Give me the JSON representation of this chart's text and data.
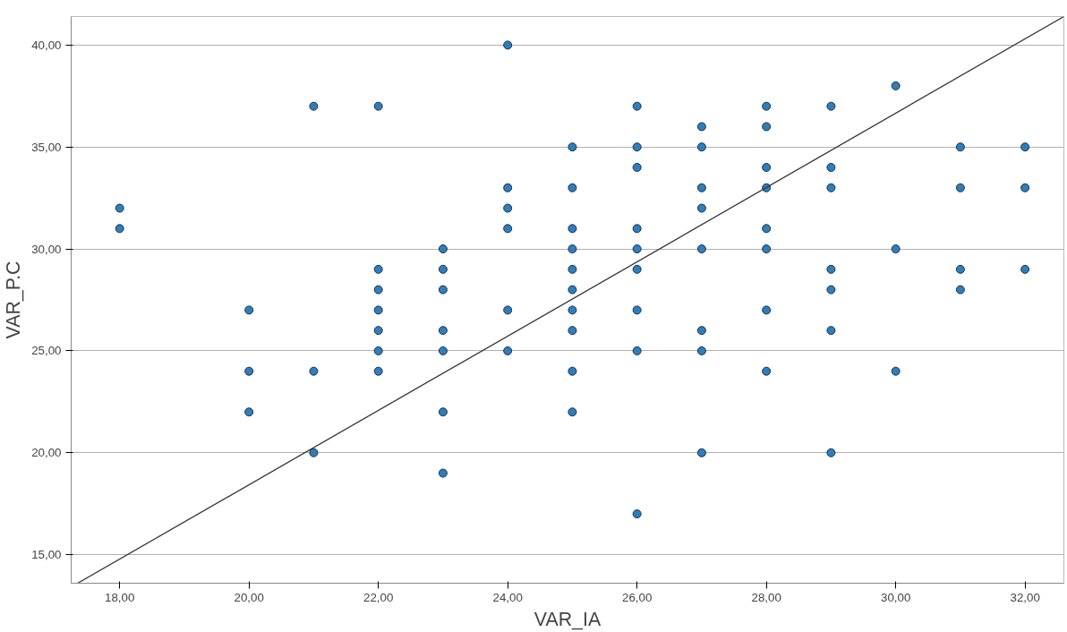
{
  "chart_data": {
    "type": "scatter",
    "xlabel": "VAR_IA",
    "ylabel": "VAR_P.C",
    "grid": "y",
    "marker": "circle",
    "xlim": [
      17.25,
      32.6
    ],
    "ylim": [
      13.6,
      41.4
    ],
    "xticks": [
      {
        "value": 18,
        "label": "18,00"
      },
      {
        "value": 20,
        "label": "20,00"
      },
      {
        "value": 22,
        "label": "22,00"
      },
      {
        "value": 24,
        "label": "24,00"
      },
      {
        "value": 26,
        "label": "26,00"
      },
      {
        "value": 28,
        "label": "28,00"
      },
      {
        "value": 30,
        "label": "30,00"
      },
      {
        "value": 32,
        "label": "32,00"
      }
    ],
    "yticks": [
      {
        "value": 15,
        "label": "15,00"
      },
      {
        "value": 20,
        "label": "20,00"
      },
      {
        "value": 25,
        "label": "25,00"
      },
      {
        "value": 30,
        "label": "30,00"
      },
      {
        "value": 35,
        "label": "35,00"
      },
      {
        "value": 40,
        "label": "40,00"
      }
    ],
    "series": [
      {
        "color": "#2f7ebc",
        "x": [
          18,
          18,
          20,
          20,
          20,
          21,
          21,
          21,
          22,
          22,
          22,
          22,
          22,
          22,
          22,
          23,
          23,
          23,
          23,
          23,
          23,
          23,
          24,
          24,
          24,
          24,
          24,
          24,
          25,
          25,
          25,
          25,
          25,
          25,
          25,
          25,
          25,
          25,
          26,
          26,
          26,
          26,
          26,
          26,
          26,
          26,
          26,
          27,
          27,
          27,
          27,
          27,
          27,
          27,
          27,
          28,
          28,
          28,
          28,
          28,
          28,
          28,
          28,
          29,
          29,
          29,
          29,
          29,
          29,
          29,
          30,
          30,
          30,
          31,
          31,
          31,
          31,
          32,
          32,
          32
        ],
        "values": [
          32,
          31,
          27,
          24,
          22,
          37,
          24,
          20,
          37,
          29,
          28,
          27,
          26,
          25,
          24,
          30,
          29,
          28,
          26,
          25,
          22,
          19,
          40,
          33,
          32,
          31,
          27,
          25,
          35,
          33,
          31,
          30,
          29,
          28,
          27,
          26,
          24,
          22,
          37,
          35,
          34,
          31,
          30,
          29,
          27,
          25,
          17,
          36,
          35,
          33,
          32,
          30,
          26,
          25,
          20,
          37,
          36,
          34,
          33,
          31,
          30,
          27,
          24,
          37,
          34,
          33,
          29,
          28,
          26,
          20,
          38,
          30,
          24,
          35,
          33,
          29,
          28,
          35,
          33,
          29
        ]
      },
      {
        "type": "line",
        "color": "#333333",
        "x": [
          17.35,
          32.6
        ],
        "values": [
          13.6,
          41.4
        ],
        "marker": "none"
      }
    ]
  }
}
